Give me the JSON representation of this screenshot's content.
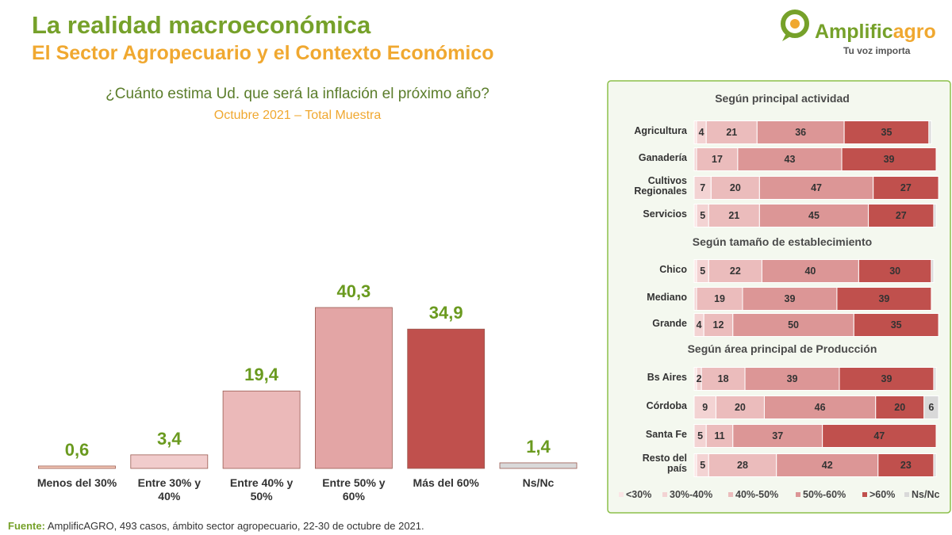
{
  "header": {
    "title": "La realidad macroeconómica",
    "subtitle": "El Sector Agropecuario y el Contexto Económico"
  },
  "logo": {
    "brand_a": "Amplific",
    "brand_b": "agro",
    "tagline": "Tu voz importa"
  },
  "chart_data": [
    {
      "type": "bar",
      "title": "¿Cuánto estima Ud. que será la inflación el próximo año?",
      "subtitle": "Octubre 2021 – Total Muestra",
      "categories": [
        "Menos del 30%",
        "Entre 30% y 40%",
        "Entre 40% y 50%",
        "Entre 50% y 60%",
        "Más del 60%",
        "Ns/Nc"
      ],
      "values": [
        0.6,
        3.4,
        19.4,
        40.3,
        34.9,
        1.4
      ],
      "value_labels": [
        "0,6",
        "3,4",
        "19,4",
        "40,3",
        "34,9",
        "1,4"
      ],
      "colors": [
        "#f4c9b8",
        "#f1cccc",
        "#ebb9b9",
        "#e3a5a5",
        "#c0504d",
        "#d9d9d9"
      ]
    },
    {
      "type": "stacked-bar-h",
      "series_names": [
        "<30%",
        "30%-40%",
        "40%-50%",
        "50%-60%",
        ">60%",
        "Ns/Nc"
      ],
      "colors": [
        "#fbe5e5",
        "#f3d3d3",
        "#ebbcbc",
        "#dc9696",
        "#c0504d",
        "#d9d9d9"
      ],
      "groups": [
        {
          "title": "Según principal actividad",
          "rows": [
            {
              "label": "Agricultura",
              "values": [
                1,
                4,
                21,
                36,
                35,
                1
              ]
            },
            {
              "label": "Ganadería",
              "values": [
                0,
                1,
                17,
                43,
                39,
                0
              ]
            },
            {
              "label": "Cultivos Regionales",
              "values": [
                0,
                7,
                20,
                47,
                27,
                0
              ]
            },
            {
              "label": "Servicios",
              "values": [
                1,
                5,
                21,
                45,
                27,
                1
              ]
            }
          ]
        },
        {
          "title": "Según tamaño de establecimiento",
          "rows": [
            {
              "label": "Chico",
              "values": [
                1,
                5,
                22,
                40,
                30,
                1
              ]
            },
            {
              "label": "Mediano",
              "values": [
                0,
                1,
                19,
                39,
                39,
                0
              ]
            },
            {
              "label": "Grande",
              "values": [
                0,
                4,
                12,
                50,
                35,
                0
              ]
            }
          ]
        },
        {
          "title": "Según área principal de Producción",
          "rows": [
            {
              "label": "Bs Aires",
              "values": [
                1,
                2,
                18,
                39,
                39,
                1
              ]
            },
            {
              "label": "Córdoba",
              "values": [
                0,
                9,
                20,
                46,
                20,
                6
              ]
            },
            {
              "label": "Santa Fe",
              "values": [
                0,
                5,
                11,
                37,
                47,
                0
              ]
            },
            {
              "label": "Resto del país",
              "values": [
                1,
                5,
                28,
                42,
                23,
                1
              ]
            }
          ]
        }
      ]
    }
  ],
  "footer": {
    "label": "Fuente:",
    "text": "AmplificAGRO, 493 casos, ámbito sector agropecuario, 22-30 de octubre  de 2021."
  }
}
